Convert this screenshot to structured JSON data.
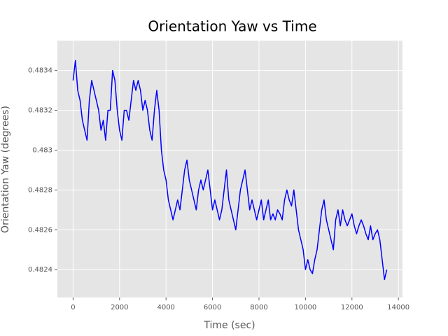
{
  "chart_data": {
    "type": "line",
    "title": "Orientation Yaw vs Time",
    "x_label": "Time (sec)",
    "y_label": "Orientation Yaw (degrees)",
    "x": [
      0,
      100,
      200,
      300,
      400,
      500,
      600,
      700,
      800,
      900,
      1000,
      1100,
      1200,
      1300,
      1400,
      1500,
      1600,
      1700,
      1800,
      1900,
      2000,
      2100,
      2200,
      2300,
      2400,
      2500,
      2600,
      2700,
      2800,
      2900,
      3000,
      3100,
      3200,
      3300,
      3400,
      3500,
      3600,
      3700,
      3800,
      3900,
      4000,
      4100,
      4200,
      4300,
      4400,
      4500,
      4600,
      4700,
      4800,
      4900,
      5000,
      5100,
      5200,
      5300,
      5400,
      5500,
      5600,
      5700,
      5800,
      5900,
      6000,
      6100,
      6200,
      6300,
      6400,
      6500,
      6600,
      6700,
      6800,
      6900,
      7000,
      7100,
      7200,
      7300,
      7400,
      7500,
      7600,
      7700,
      7800,
      7900,
      8000,
      8100,
      8200,
      8300,
      8400,
      8500,
      8600,
      8700,
      8800,
      8900,
      9000,
      9100,
      9200,
      9300,
      9400,
      9500,
      9600,
      9700,
      9800,
      9900,
      10000,
      10100,
      10200,
      10300,
      10400,
      10500,
      10600,
      10700,
      10800,
      10900,
      11000,
      11100,
      11200,
      11300,
      11400,
      11500,
      11600,
      11700,
      11800,
      11900,
      12000,
      12100,
      12200,
      12300,
      12400,
      12500,
      12600,
      12700,
      12800,
      12900,
      13000,
      13100,
      13200,
      13300,
      13400,
      13500
    ],
    "series": [
      {
        "color": "#0000ff",
        "values": [
          0.48335,
          0.48345,
          0.4833,
          0.48325,
          0.48315,
          0.4831,
          0.48305,
          0.48325,
          0.48335,
          0.4833,
          0.48325,
          0.4832,
          0.4831,
          0.48315,
          0.48305,
          0.4832,
          0.4832,
          0.4834,
          0.48335,
          0.4832,
          0.4831,
          0.48305,
          0.4832,
          0.4832,
          0.48315,
          0.48325,
          0.48335,
          0.4833,
          0.48335,
          0.4833,
          0.4832,
          0.48325,
          0.4832,
          0.4831,
          0.48305,
          0.4832,
          0.4833,
          0.4832,
          0.483,
          0.4829,
          0.48285,
          0.48275,
          0.4827,
          0.48265,
          0.4827,
          0.48275,
          0.4827,
          0.4828,
          0.4829,
          0.48295,
          0.48285,
          0.4828,
          0.48275,
          0.4827,
          0.4828,
          0.48285,
          0.4828,
          0.48285,
          0.4829,
          0.4828,
          0.4827,
          0.48275,
          0.4827,
          0.48265,
          0.4827,
          0.4828,
          0.4829,
          0.48275,
          0.4827,
          0.48265,
          0.4826,
          0.4827,
          0.4828,
          0.48285,
          0.4829,
          0.4828,
          0.4827,
          0.48275,
          0.4827,
          0.48265,
          0.4827,
          0.48275,
          0.48265,
          0.4827,
          0.48275,
          0.48265,
          0.48268,
          0.48265,
          0.4827,
          0.48268,
          0.48265,
          0.48275,
          0.4828,
          0.48275,
          0.48272,
          0.4828,
          0.4827,
          0.4826,
          0.48255,
          0.4825,
          0.4824,
          0.48245,
          0.4824,
          0.48238,
          0.48245,
          0.4825,
          0.4826,
          0.4827,
          0.48275,
          0.48265,
          0.4826,
          0.48255,
          0.4825,
          0.48265,
          0.4827,
          0.48262,
          0.4827,
          0.48265,
          0.48262,
          0.48265,
          0.48268,
          0.48262,
          0.48258,
          0.48262,
          0.48265,
          0.48262,
          0.48258,
          0.48255,
          0.48262,
          0.48255,
          0.48258,
          0.4826,
          0.48255,
          0.48245,
          0.48235,
          0.4824
        ]
      }
    ],
    "xlim": [
      -675,
      14175
    ],
    "xticks": [
      0,
      2000,
      4000,
      6000,
      8000,
      10000,
      12000,
      14000
    ],
    "ylim": [
      0.48226,
      0.48355
    ],
    "yticks": [
      0.4824,
      0.4826,
      0.4828,
      0.483,
      0.4832,
      0.4834
    ],
    "grid": true
  }
}
